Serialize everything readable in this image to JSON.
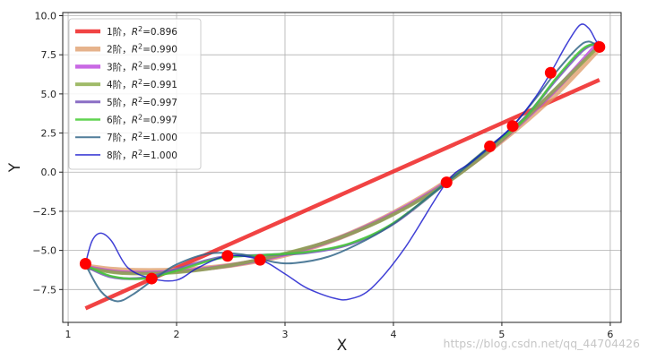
{
  "chart_data": {
    "type": "line",
    "title": "",
    "xlabel": "X",
    "ylabel": "Y",
    "xlim": [
      0.95,
      6.1
    ],
    "ylim": [
      -9.6,
      10.2
    ],
    "grid": true,
    "legend_position": "top-left",
    "x_ticks": [
      1,
      2,
      3,
      4,
      5,
      6
    ],
    "y_ticks": [
      -7.5,
      -5.0,
      -2.5,
      0.0,
      2.5,
      5.0,
      7.5,
      10.0
    ],
    "x_tick_labels": [
      "1",
      "2",
      "3",
      "4",
      "5",
      "6"
    ],
    "y_tick_labels": [
      "−7.5",
      "−5.0",
      "−2.5",
      "0.0",
      "2.5",
      "5.0",
      "7.5",
      "10.0"
    ],
    "points": {
      "color": "#ff0000",
      "x": [
        1.16,
        1.77,
        2.47,
        2.77,
        4.49,
        4.89,
        5.1,
        5.45,
        5.9
      ],
      "y": [
        -5.85,
        -6.8,
        -5.35,
        -5.6,
        -0.65,
        1.65,
        2.95,
        6.35,
        8.0
      ]
    },
    "series": [
      {
        "name": "1阶，R²=0.896",
        "label_prefix": "1阶，",
        "r2_text": "=0.896",
        "color": "#ee2222",
        "width": 4.5,
        "opacity": 0.85,
        "x": [
          1.16,
          5.9
        ],
        "y": [
          -8.7,
          5.9
        ]
      },
      {
        "name": "2阶，R²=0.990",
        "label_prefix": "2阶，",
        "r2_text": "=0.990",
        "color": "#dd9966",
        "width": 5.5,
        "opacity": 0.75,
        "x": [
          1.16,
          1.5,
          2.0,
          2.5,
          3.0,
          3.5,
          4.0,
          4.5,
          5.0,
          5.5,
          5.9
        ],
        "y": [
          -6.0,
          -6.25,
          -6.25,
          -5.95,
          -5.3,
          -4.2,
          -2.6,
          -0.55,
          2.0,
          5.0,
          7.9
        ]
      },
      {
        "name": "3阶，R²=0.991",
        "label_prefix": "3阶，",
        "r2_text": "=0.991",
        "color": "#bb44dd",
        "width": 4.5,
        "opacity": 0.8,
        "x": [
          1.16,
          1.5,
          2.0,
          2.5,
          3.0,
          3.5,
          4.0,
          4.5,
          5.0,
          5.5,
          5.9
        ],
        "y": [
          -6.05,
          -6.4,
          -6.35,
          -5.95,
          -5.25,
          -4.2,
          -2.65,
          -0.6,
          2.05,
          5.3,
          8.35
        ]
      },
      {
        "name": "4阶，R²=0.991",
        "label_prefix": "4阶，",
        "r2_text": "=0.991",
        "color": "#88aa44",
        "width": 4,
        "opacity": 0.8,
        "x": [
          1.16,
          1.5,
          2.0,
          2.5,
          3.0,
          3.5,
          4.0,
          4.5,
          5.0,
          5.5,
          5.9
        ],
        "y": [
          -6.1,
          -6.45,
          -6.4,
          -5.95,
          -5.2,
          -4.2,
          -2.7,
          -0.65,
          2.05,
          5.35,
          8.1
        ]
      },
      {
        "name": "5阶，R²=0.997",
        "label_prefix": "5阶，",
        "r2_text": "=0.997",
        "color": "#7755bb",
        "width": 3,
        "opacity": 0.85,
        "x": [
          1.16,
          1.4,
          1.7,
          2.0,
          2.4,
          2.8,
          3.2,
          3.6,
          4.0,
          4.5,
          4.9,
          5.2,
          5.5,
          5.75,
          5.9
        ],
        "y": [
          -6.0,
          -6.7,
          -6.75,
          -6.2,
          -5.45,
          -5.3,
          -5.15,
          -4.6,
          -3.3,
          -0.6,
          1.7,
          3.4,
          5.9,
          7.8,
          8.3
        ]
      },
      {
        "name": "6阶，R²=0.997",
        "label_prefix": "6阶，",
        "r2_text": "=0.997",
        "color": "#44cc33",
        "width": 2.5,
        "opacity": 0.85,
        "x": [
          1.16,
          1.4,
          1.7,
          2.0,
          2.4,
          2.8,
          3.2,
          3.6,
          4.0,
          4.5,
          4.9,
          5.2,
          5.5,
          5.75,
          5.9
        ],
        "y": [
          -5.95,
          -6.65,
          -6.8,
          -6.3,
          -5.5,
          -5.3,
          -5.1,
          -4.55,
          -3.25,
          -0.6,
          1.7,
          3.35,
          6.0,
          7.9,
          8.2
        ]
      },
      {
        "name": "7阶，R²=1.000",
        "label_prefix": "7阶，",
        "r2_text": "=1.000",
        "color": "#336688",
        "width": 2,
        "opacity": 0.85,
        "x": [
          1.16,
          1.3,
          1.45,
          1.6,
          1.8,
          2.0,
          2.3,
          2.6,
          2.9,
          3.1,
          3.4,
          3.7,
          4.0,
          4.3,
          4.5,
          4.7,
          4.9,
          5.1,
          5.3,
          5.5,
          5.7,
          5.8,
          5.9
        ],
        "y": [
          -5.9,
          -7.6,
          -8.25,
          -7.8,
          -6.8,
          -5.9,
          -5.2,
          -5.25,
          -5.75,
          -5.8,
          -5.4,
          -4.5,
          -3.3,
          -1.7,
          -0.6,
          0.5,
          1.65,
          2.95,
          4.6,
          6.4,
          7.95,
          8.35,
          8.0
        ]
      },
      {
        "name": "8阶，R²=1.000",
        "label_prefix": "8阶，",
        "r2_text": "=1.000",
        "color": "#1111cc",
        "width": 1.5,
        "opacity": 0.8,
        "x": [
          1.16,
          1.22,
          1.3,
          1.4,
          1.55,
          1.77,
          2.0,
          2.2,
          2.47,
          2.77,
          3.0,
          3.2,
          3.45,
          3.6,
          3.8,
          4.1,
          4.49,
          4.7,
          4.89,
          5.1,
          5.3,
          5.45,
          5.6,
          5.72,
          5.8,
          5.86,
          5.9
        ],
        "y": [
          -5.85,
          -4.4,
          -3.9,
          -4.4,
          -6.1,
          -6.8,
          -6.9,
          -6.1,
          -5.35,
          -5.6,
          -6.5,
          -7.4,
          -8.05,
          -8.1,
          -7.4,
          -4.9,
          -0.65,
          0.55,
          1.65,
          2.95,
          4.7,
          6.35,
          8.2,
          9.4,
          9.2,
          8.5,
          8.0
        ]
      }
    ]
  },
  "legend": {
    "r2_symbol": "R",
    "r2_superscript": "2"
  },
  "watermark": "https://blog.csdn.net/qq_44704426"
}
